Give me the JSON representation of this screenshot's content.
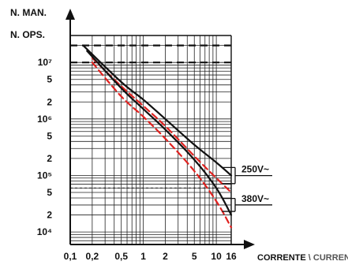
{
  "chart_data": {
    "type": "line",
    "title": "",
    "ylabel_lines": [
      "N. MAN.",
      "N. OPS."
    ],
    "xlabel_parts": [
      "CORRENTE",
      "\\",
      "CURRENT"
    ],
    "x_scale": "log",
    "y_scale": "log",
    "xlim": [
      0.1,
      16
    ],
    "ylim": [
      6000,
      30000000
    ],
    "x_tick_labels": [
      "0,1",
      "0,2",
      "0,5",
      "1",
      "2",
      "5",
      "10",
      "16"
    ],
    "y_tick_labels": [
      "10⁷",
      "5",
      "2",
      "10⁶",
      "5",
      "2",
      "10⁵",
      "5",
      "2",
      "10⁴"
    ],
    "grid": true,
    "reference_lines": [
      {
        "y": 20000000,
        "style": "dashed"
      },
      {
        "y": 10000000,
        "style": "dashed"
      },
      {
        "y": 60000,
        "style": "dashed"
      }
    ],
    "series": [
      {
        "voltage": "250V",
        "color": "#111111",
        "style": "solid",
        "x": [
          0.15,
          0.5,
          1,
          2,
          5,
          10,
          16
        ],
        "y": [
          20000000,
          4500000,
          2200000,
          1000000,
          350000,
          170000,
          100000
        ]
      },
      {
        "voltage": "250V",
        "color": "#e0211f",
        "style": "dashed",
        "x": [
          0.2,
          0.5,
          1,
          2,
          5,
          10,
          16
        ],
        "y": [
          12000000,
          3800000,
          1700000,
          750000,
          220000,
          90000,
          50000
        ]
      },
      {
        "voltage": "380V",
        "color": "#111111",
        "style": "solid",
        "x": [
          0.17,
          0.5,
          1,
          2,
          5,
          10,
          16
        ],
        "y": [
          16000000,
          3500000,
          1500000,
          650000,
          190000,
          60000,
          20000
        ]
      },
      {
        "voltage": "380V",
        "color": "#e0211f",
        "style": "dashed",
        "x": [
          0.2,
          0.5,
          1,
          2,
          5,
          10,
          16
        ],
        "y": [
          10000000,
          2500000,
          1100000,
          450000,
          120000,
          35000,
          12000
        ]
      }
    ],
    "annotations": [
      {
        "text": "250V~",
        "series_indices": [
          0,
          1
        ],
        "at_x": 12
      },
      {
        "text": "380V~",
        "series_indices": [
          2,
          3
        ],
        "at_x": 12
      }
    ]
  }
}
